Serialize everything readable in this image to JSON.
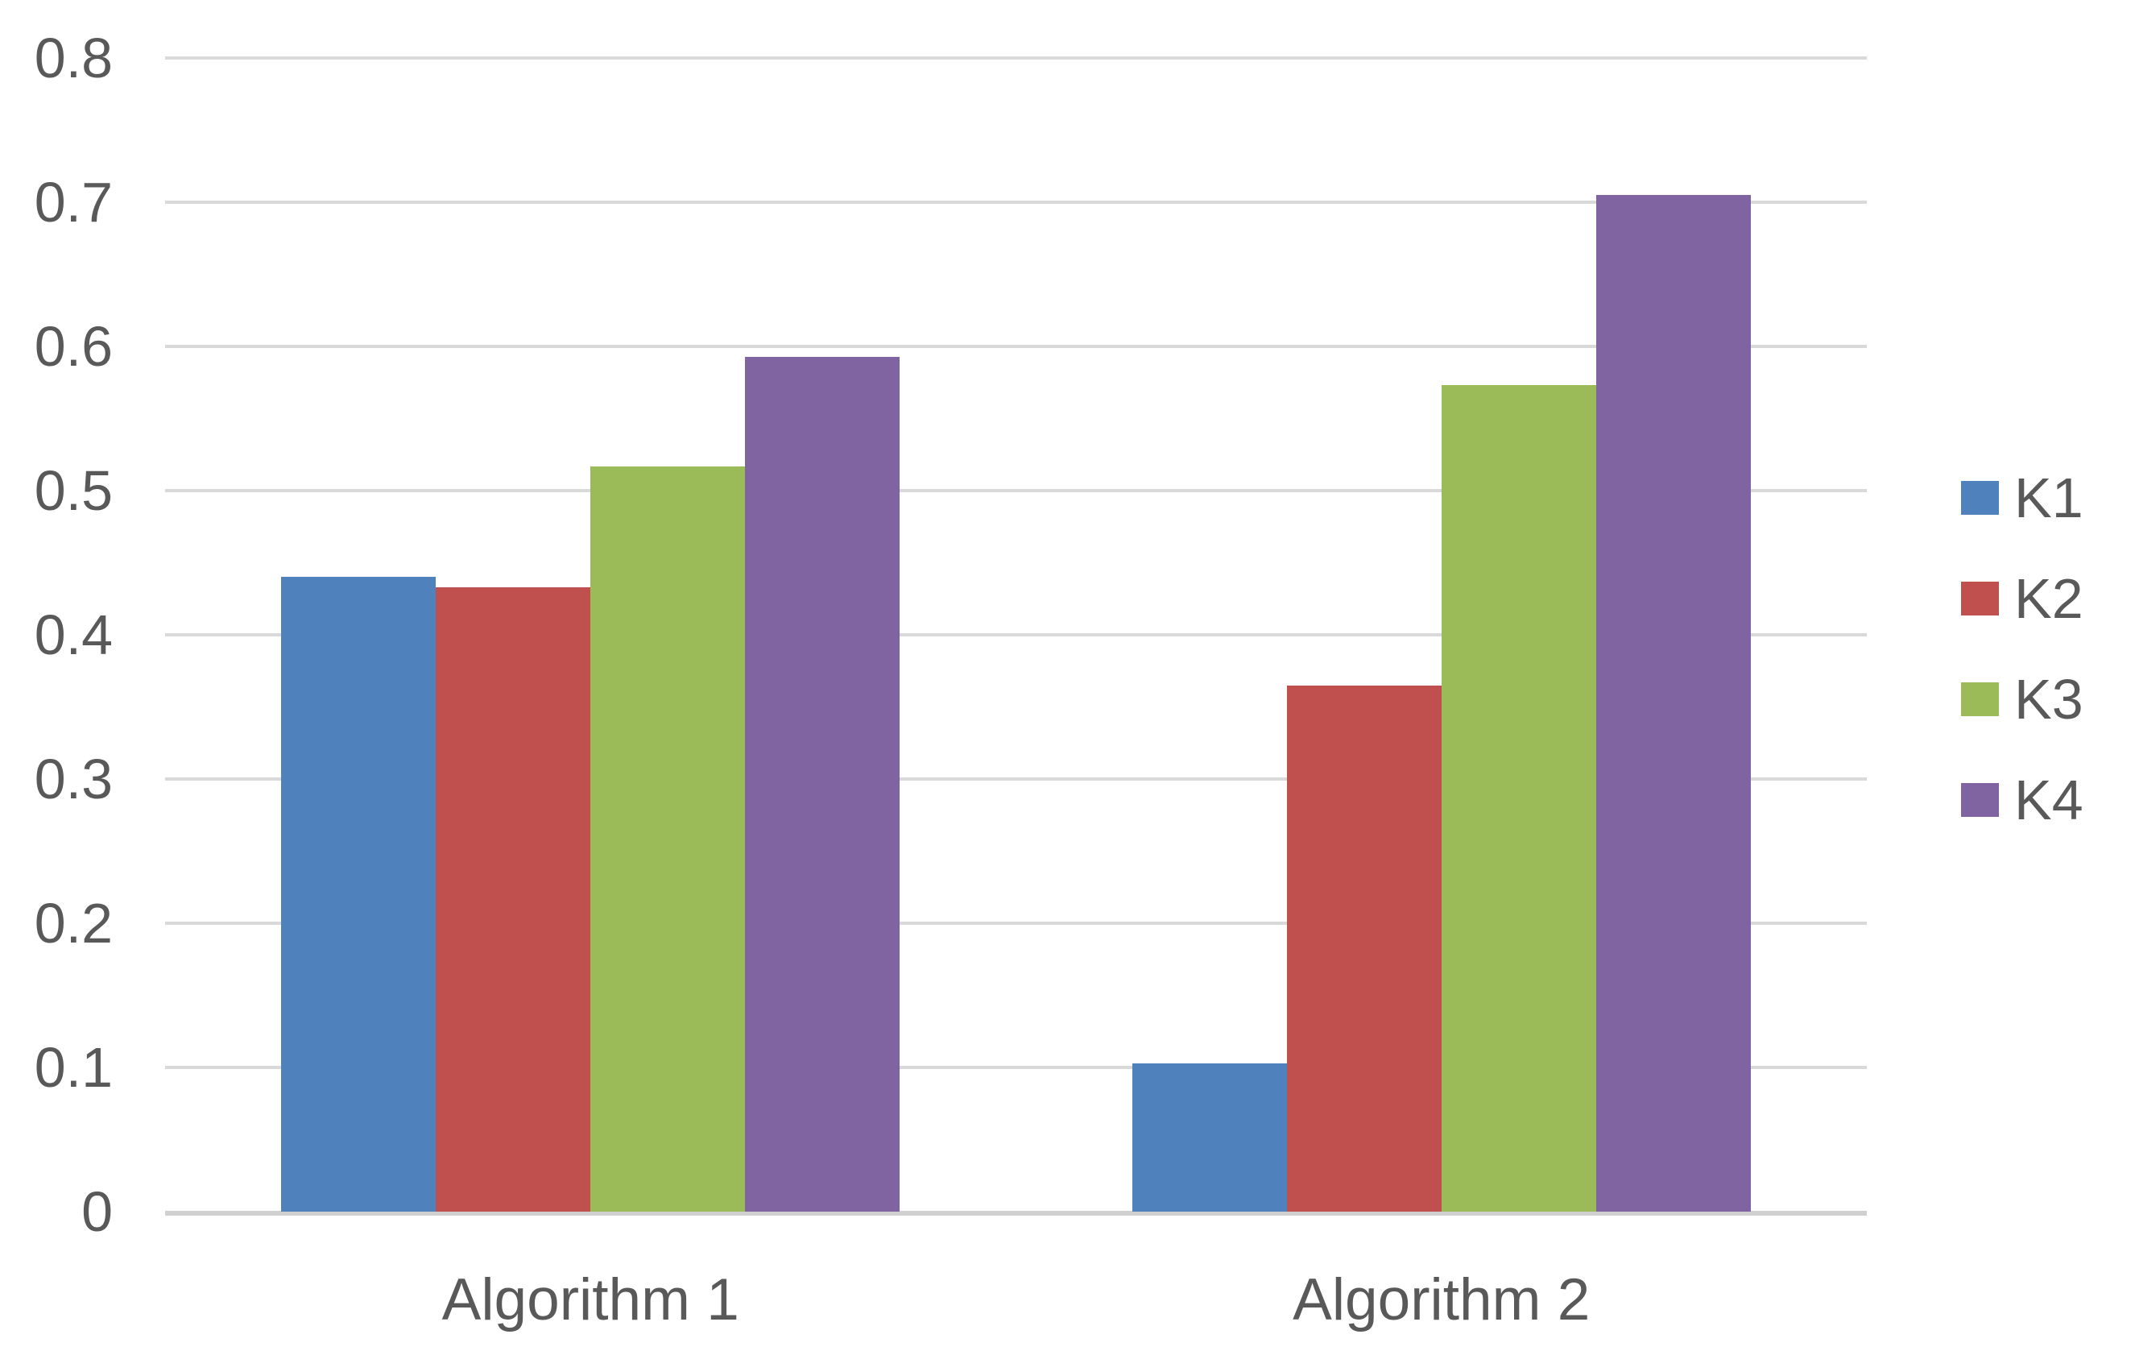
{
  "chart_data": {
    "type": "bar",
    "title": "",
    "xlabel": "",
    "ylabel": "",
    "categories": [
      "Algorithm 1",
      "Algorithm 2"
    ],
    "series": [
      {
        "name": "K1",
        "color": "#4F81BD",
        "values": [
          0.44,
          0.103
        ]
      },
      {
        "name": "K2",
        "color": "#C0504D",
        "values": [
          0.433,
          0.365
        ]
      },
      {
        "name": "K3",
        "color": "#9BBB59",
        "values": [
          0.517,
          0.573
        ]
      },
      {
        "name": "K4",
        "color": "#8064A2",
        "values": [
          0.593,
          0.705
        ]
      }
    ],
    "ylim": [
      0,
      0.8
    ],
    "ytick_step": 0.1,
    "yticks": [
      {
        "label": "0.8",
        "value": 0.8
      },
      {
        "label": "0.7",
        "value": 0.7
      },
      {
        "label": "0.6",
        "value": 0.6
      },
      {
        "label": "0.5",
        "value": 0.5
      },
      {
        "label": "0.4",
        "value": 0.4
      },
      {
        "label": "0.3",
        "value": 0.3
      },
      {
        "label": "0.2",
        "value": 0.2
      },
      {
        "label": "0.1",
        "value": 0.1
      },
      {
        "label": "0",
        "value": 0
      }
    ],
    "grid": true,
    "legend_position": "right",
    "legend": [
      "K1",
      "K2",
      "K3",
      "K4"
    ],
    "colors": {
      "gridline": "#D9D9D9",
      "axis_line": "#D0D0D0",
      "text": "#595959",
      "background": "#FFFFFF"
    }
  }
}
